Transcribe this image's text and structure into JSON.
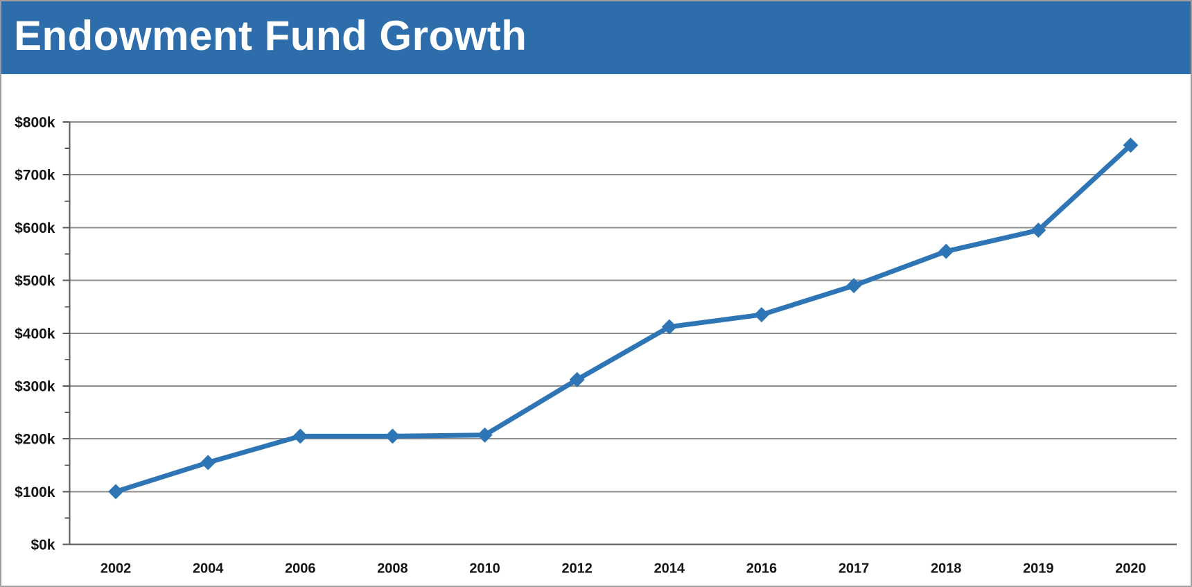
{
  "header": {
    "title": "Endowment Fund Growth",
    "background_color": "#2e6dab",
    "text_color": "#ffffff"
  },
  "chart_data": {
    "type": "line",
    "title": "Endowment Fund Growth",
    "x": [
      "2002",
      "2004",
      "2006",
      "2008",
      "2010",
      "2012",
      "2014",
      "2016",
      "2017",
      "2018",
      "2019",
      "2020"
    ],
    "series": [
      {
        "name": "Endowment Fund Growth",
        "values": [
          100,
          155,
          205,
          205,
          207,
          312,
          412,
          435,
          490,
          555,
          595,
          756
        ],
        "color": "#2e75b6",
        "marker": "diamond",
        "line_width": 7
      }
    ],
    "y_axis": {
      "min": 0,
      "max": 800,
      "major_step": 100,
      "minor_step": 50,
      "tick_labels": [
        "$0k",
        "$100k",
        "$200k",
        "$300k",
        "$400k",
        "$500k",
        "$600k",
        "$700k",
        "$800k"
      ]
    },
    "x_axis": {
      "tick_labels": [
        "2002",
        "2004",
        "2006",
        "2008",
        "2010",
        "2012",
        "2014",
        "2016",
        "2017",
        "2018",
        "2019",
        "2020"
      ]
    },
    "grid": "horizontal major gridlines only",
    "legend": "none",
    "colors": {
      "gridline": "#8e8e8e",
      "axis": "#5a5a5a",
      "tick_label": "#141414",
      "plot_background": "#ffffff"
    }
  }
}
